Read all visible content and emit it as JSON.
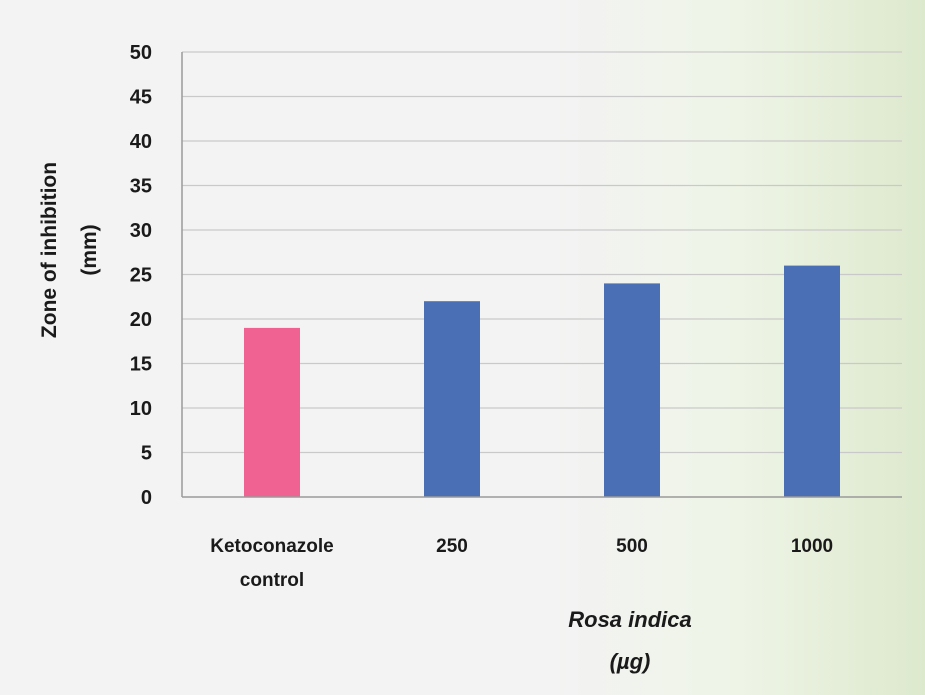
{
  "chart_data": {
    "type": "bar",
    "categories": [
      "Ketoconazole control",
      "250",
      "500",
      "1000"
    ],
    "category_lines": [
      [
        "Ketoconazole",
        "control"
      ],
      [
        "250"
      ],
      [
        "500"
      ],
      [
        "1000"
      ]
    ],
    "values": [
      19,
      22,
      24,
      26
    ],
    "bar_colors": [
      "#f06292",
      "#4a6fb4",
      "#4a6fb4",
      "#4a6fb4"
    ],
    "ylabel_lines": [
      "Zone of inhibition",
      "(mm)"
    ],
    "xlabel_lines": [
      "Rosa indica",
      "(µg)"
    ],
    "ylim": [
      0,
      50
    ],
    "yticks": [
      0,
      5,
      10,
      15,
      20,
      25,
      30,
      35,
      40,
      45,
      50
    ],
    "grid": true,
    "legend": "none"
  }
}
